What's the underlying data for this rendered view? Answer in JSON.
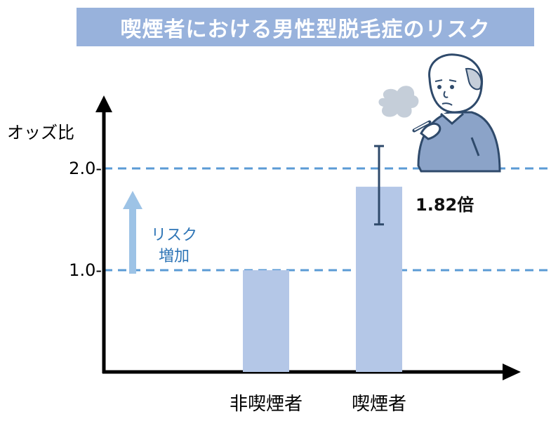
{
  "title": "喫煙者における男性型脱毛症のリスク",
  "chart_data": {
    "type": "bar",
    "ylabel": "オッズ比",
    "yticks": [
      {
        "value": 1.0,
        "label": "1.0-"
      },
      {
        "value": 2.0,
        "label": "2.0-"
      }
    ],
    "reference_lines": [
      1.0,
      2.0
    ],
    "categories": [
      "非喫煙者",
      "喫煙者"
    ],
    "values": [
      1.0,
      1.82
    ],
    "error_bar": {
      "category": "喫煙者",
      "low": 1.45,
      "high": 2.22
    },
    "value_annotation": {
      "category": "喫煙者",
      "text": "1.82倍"
    },
    "risk_arrow_label": [
      "リスク",
      "増加"
    ],
    "colors": {
      "bar": "#b4c7e7",
      "reference_line": "#5b9bd5",
      "error_bar": "#2f4a6b",
      "arrow": "#9dc3e6",
      "risk_text": "#2e75b6",
      "axis": "#000000"
    }
  },
  "illustration": {
    "name": "smoking-man-illustration"
  }
}
